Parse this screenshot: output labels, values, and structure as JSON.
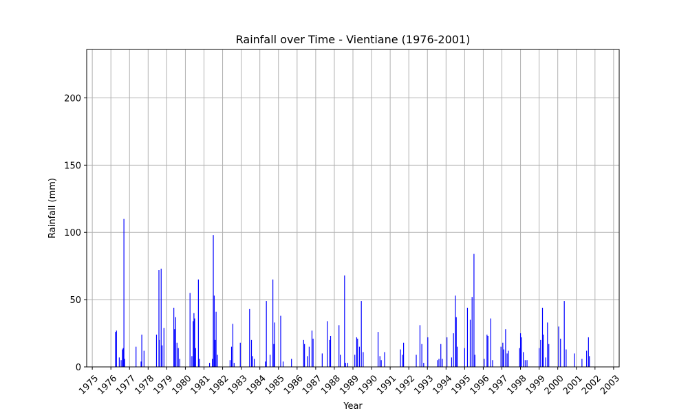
{
  "chart_data": {
    "type": "bar",
    "title": "Rainfall over Time - Vientiane (1976-2001)",
    "xlabel": "Year",
    "ylabel": "Rainfall (mm)",
    "xlim": [
      1974.7,
      2003.3
    ],
    "ylim": [
      0,
      236
    ],
    "grid": true,
    "bar_color": "#0000ff",
    "x_ticks": [
      1975,
      1976,
      1977,
      1978,
      1979,
      1980,
      1981,
      1982,
      1983,
      1984,
      1985,
      1986,
      1987,
      1988,
      1989,
      1990,
      1991,
      1992,
      1993,
      1994,
      1995,
      1996,
      1997,
      1998,
      1999,
      2000,
      2001,
      2002,
      2003
    ],
    "y_ticks": [
      0,
      50,
      100,
      150,
      200
    ],
    "points": [
      {
        "x": 1976.25,
        "y": 26
      },
      {
        "x": 1976.3,
        "y": 27
      },
      {
        "x": 1976.45,
        "y": 7
      },
      {
        "x": 1976.55,
        "y": 5
      },
      {
        "x": 1976.62,
        "y": 13
      },
      {
        "x": 1976.66,
        "y": 14
      },
      {
        "x": 1976.7,
        "y": 110
      },
      {
        "x": 1976.74,
        "y": 6
      },
      {
        "x": 1977.35,
        "y": 15
      },
      {
        "x": 1977.62,
        "y": 4
      },
      {
        "x": 1977.66,
        "y": 24
      },
      {
        "x": 1977.78,
        "y": 12
      },
      {
        "x": 1978.45,
        "y": 24
      },
      {
        "x": 1978.58,
        "y": 72
      },
      {
        "x": 1978.6,
        "y": 20
      },
      {
        "x": 1978.7,
        "y": 73
      },
      {
        "x": 1978.75,
        "y": 16
      },
      {
        "x": 1978.85,
        "y": 29
      },
      {
        "x": 1979.38,
        "y": 44
      },
      {
        "x": 1979.42,
        "y": 28
      },
      {
        "x": 1979.48,
        "y": 37
      },
      {
        "x": 1979.55,
        "y": 18
      },
      {
        "x": 1979.62,
        "y": 14
      },
      {
        "x": 1979.7,
        "y": 6
      },
      {
        "x": 1980.25,
        "y": 55
      },
      {
        "x": 1980.35,
        "y": 8
      },
      {
        "x": 1980.42,
        "y": 34
      },
      {
        "x": 1980.46,
        "y": 40
      },
      {
        "x": 1980.5,
        "y": 36
      },
      {
        "x": 1980.55,
        "y": 14
      },
      {
        "x": 1980.7,
        "y": 65
      },
      {
        "x": 1980.76,
        "y": 6
      },
      {
        "x": 1981.3,
        "y": 3
      },
      {
        "x": 1981.45,
        "y": 6
      },
      {
        "x": 1981.5,
        "y": 98
      },
      {
        "x": 1981.55,
        "y": 53
      },
      {
        "x": 1981.6,
        "y": 20
      },
      {
        "x": 1981.65,
        "y": 41
      },
      {
        "x": 1981.72,
        "y": 9
      },
      {
        "x": 1982.4,
        "y": 5
      },
      {
        "x": 1982.48,
        "y": 15
      },
      {
        "x": 1982.55,
        "y": 32
      },
      {
        "x": 1982.62,
        "y": 3
      },
      {
        "x": 1982.95,
        "y": 18
      },
      {
        "x": 1983.45,
        "y": 43
      },
      {
        "x": 1983.55,
        "y": 20
      },
      {
        "x": 1983.62,
        "y": 8
      },
      {
        "x": 1983.7,
        "y": 6
      },
      {
        "x": 1984.3,
        "y": 4
      },
      {
        "x": 1984.35,
        "y": 49
      },
      {
        "x": 1984.55,
        "y": 9
      },
      {
        "x": 1984.7,
        "y": 65
      },
      {
        "x": 1984.75,
        "y": 17
      },
      {
        "x": 1984.8,
        "y": 33
      },
      {
        "x": 1985.12,
        "y": 38
      },
      {
        "x": 1985.25,
        "y": 4
      },
      {
        "x": 1985.7,
        "y": 6
      },
      {
        "x": 1986.35,
        "y": 20
      },
      {
        "x": 1986.4,
        "y": 17
      },
      {
        "x": 1986.55,
        "y": 8
      },
      {
        "x": 1986.65,
        "y": 15
      },
      {
        "x": 1986.8,
        "y": 27
      },
      {
        "x": 1986.86,
        "y": 21
      },
      {
        "x": 1987.35,
        "y": 10
      },
      {
        "x": 1987.62,
        "y": 34
      },
      {
        "x": 1987.75,
        "y": 20
      },
      {
        "x": 1987.8,
        "y": 23
      },
      {
        "x": 1988.25,
        "y": 31
      },
      {
        "x": 1988.32,
        "y": 9
      },
      {
        "x": 1988.55,
        "y": 68
      },
      {
        "x": 1988.6,
        "y": 3
      },
      {
        "x": 1988.72,
        "y": 3
      },
      {
        "x": 1989.1,
        "y": 9
      },
      {
        "x": 1989.2,
        "y": 22
      },
      {
        "x": 1989.25,
        "y": 21
      },
      {
        "x": 1989.35,
        "y": 15
      },
      {
        "x": 1989.45,
        "y": 49
      },
      {
        "x": 1989.55,
        "y": 11
      },
      {
        "x": 1990.35,
        "y": 26
      },
      {
        "x": 1990.45,
        "y": 8
      },
      {
        "x": 1990.52,
        "y": 5
      },
      {
        "x": 1990.7,
        "y": 11
      },
      {
        "x": 1991.55,
        "y": 13
      },
      {
        "x": 1991.65,
        "y": 9
      },
      {
        "x": 1991.72,
        "y": 18
      },
      {
        "x": 1992.4,
        "y": 9
      },
      {
        "x": 1992.6,
        "y": 31
      },
      {
        "x": 1992.7,
        "y": 17
      },
      {
        "x": 1992.8,
        "y": 3
      },
      {
        "x": 1993.02,
        "y": 22
      },
      {
        "x": 1993.55,
        "y": 5
      },
      {
        "x": 1993.62,
        "y": 6
      },
      {
        "x": 1993.72,
        "y": 17
      },
      {
        "x": 1993.8,
        "y": 6
      },
      {
        "x": 1994.05,
        "y": 22
      },
      {
        "x": 1994.3,
        "y": 7
      },
      {
        "x": 1994.4,
        "y": 25
      },
      {
        "x": 1994.5,
        "y": 53
      },
      {
        "x": 1994.55,
        "y": 37
      },
      {
        "x": 1994.6,
        "y": 15
      },
      {
        "x": 1995.0,
        "y": 14
      },
      {
        "x": 1995.15,
        "y": 44
      },
      {
        "x": 1995.3,
        "y": 35
      },
      {
        "x": 1995.4,
        "y": 52
      },
      {
        "x": 1995.5,
        "y": 84
      },
      {
        "x": 1995.55,
        "y": 9
      },
      {
        "x": 1996.05,
        "y": 6
      },
      {
        "x": 1996.2,
        "y": 24
      },
      {
        "x": 1996.25,
        "y": 23
      },
      {
        "x": 1996.4,
        "y": 36
      },
      {
        "x": 1996.5,
        "y": 5
      },
      {
        "x": 1996.95,
        "y": 15
      },
      {
        "x": 1997.05,
        "y": 18
      },
      {
        "x": 1997.1,
        "y": 13
      },
      {
        "x": 1997.2,
        "y": 28
      },
      {
        "x": 1997.28,
        "y": 10
      },
      {
        "x": 1997.35,
        "y": 12
      },
      {
        "x": 1997.95,
        "y": 14
      },
      {
        "x": 1998.0,
        "y": 25
      },
      {
        "x": 1998.05,
        "y": 22
      },
      {
        "x": 1998.15,
        "y": 11
      },
      {
        "x": 1998.25,
        "y": 5
      },
      {
        "x": 1998.35,
        "y": 5
      },
      {
        "x": 1999.0,
        "y": 14
      },
      {
        "x": 1999.08,
        "y": 20
      },
      {
        "x": 1999.18,
        "y": 44
      },
      {
        "x": 1999.22,
        "y": 24
      },
      {
        "x": 1999.35,
        "y": 7
      },
      {
        "x": 1999.45,
        "y": 33
      },
      {
        "x": 1999.52,
        "y": 17
      },
      {
        "x": 2000.05,
        "y": 30
      },
      {
        "x": 2000.15,
        "y": 21
      },
      {
        "x": 2000.35,
        "y": 49
      },
      {
        "x": 2000.45,
        "y": 13
      },
      {
        "x": 2000.9,
        "y": 10
      },
      {
        "x": 2001.3,
        "y": 6
      },
      {
        "x": 2001.55,
        "y": 12
      },
      {
        "x": 2001.65,
        "y": 22
      },
      {
        "x": 2001.7,
        "y": 8
      }
    ]
  }
}
